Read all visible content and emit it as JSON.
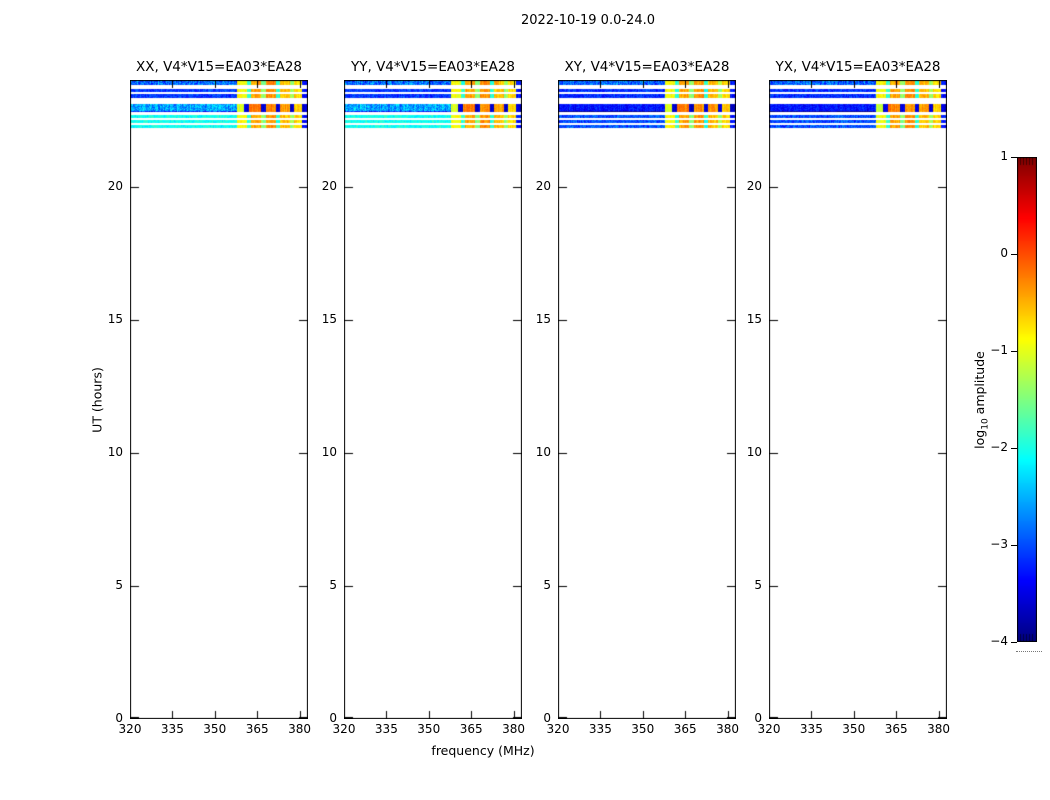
{
  "figure": {
    "suptitle": "2022-10-19 0.0-24.0"
  },
  "chart_data": {
    "type": "heatmap",
    "description": "Dynamic spectra (UT vs frequency) of visibility amplitude for baseline V4*V15=EA03*EA28 in four polarization products; data present only between UT 22.1 and 24.0, with broadband RFI above 358 MHz.",
    "panels": [
      {
        "title": "XX, V4*V15=EA03*EA28",
        "pol": "XX",
        "style": "parallel",
        "seed": 101
      },
      {
        "title": "YY, V4*V15=EA03*EA28",
        "pol": "YY",
        "style": "parallel",
        "seed": 202
      },
      {
        "title": "XY, V4*V15=EA03*EA28",
        "pol": "XY",
        "style": "cross",
        "seed": 303
      },
      {
        "title": "YX, V4*V15=EA03*EA28",
        "pol": "YX",
        "style": "cross",
        "seed": 404
      }
    ],
    "x_axis": {
      "label": "frequency (MHz)",
      "ticks": [
        320,
        335,
        350,
        365,
        380
      ],
      "range": [
        320,
        383
      ]
    },
    "y_axis": {
      "label": "UT (hours)",
      "ticks": [
        0,
        5,
        10,
        15,
        20
      ],
      "range": [
        0,
        24
      ]
    },
    "colorbar": {
      "label_log": "log",
      "label_sub": "10",
      "label_rest": "amplitude",
      "ticks": [
        {
          "value": 1,
          "label": "1"
        },
        {
          "value": 0,
          "label": "0"
        },
        {
          "value": -1,
          "label": "−1"
        },
        {
          "value": -2,
          "label": "−2"
        },
        {
          "value": -3,
          "label": "−3"
        },
        {
          "value": -4,
          "label": "−4"
        }
      ],
      "range": [
        -4,
        1
      ],
      "colormap": "jet"
    },
    "rfi_start_mhz": 358,
    "rows": [
      {
        "ut": [
          23.8,
          24.0
        ],
        "band": "top",
        "rfi": "normal"
      },
      {
        "ut": [
          23.55,
          23.66
        ],
        "band": "thin",
        "rfi": "normal"
      },
      {
        "ut": [
          23.32,
          23.47
        ],
        "band": "thin",
        "rfi": "normal"
      },
      {
        "ut": [
          22.78,
          23.08
        ],
        "band": "thick",
        "rfi": "bright"
      },
      {
        "ut": [
          22.57,
          22.68
        ],
        "band": "light",
        "rfi": "normal"
      },
      {
        "ut": [
          22.37,
          22.48
        ],
        "band": "light",
        "rfi": "normal"
      },
      {
        "ut": [
          22.18,
          22.31
        ],
        "band": "light",
        "rfi": "normal"
      }
    ],
    "band_levels": {
      "parallel": {
        "top": [
          -2.85,
          0.55
        ],
        "thin": [
          -3.1,
          0.3
        ],
        "thick": [
          -2.55,
          0.5
        ],
        "light": [
          -2.05,
          0.25
        ]
      },
      "cross": {
        "top": [
          -2.9,
          0.5
        ],
        "thin": [
          -3.15,
          0.3
        ],
        "thick": [
          -3.3,
          0.3
        ],
        "light": [
          -3.0,
          0.35
        ]
      }
    },
    "rfi_blocks_normal": [
      [
        358.0,
        361.5,
        -0.9
      ],
      [
        361.5,
        363.0,
        -1.9
      ],
      [
        363.0,
        366.5,
        -0.45
      ],
      [
        366.5,
        368.0,
        -1.45
      ],
      [
        368.0,
        371.5,
        -0.35
      ],
      [
        371.5,
        373.0,
        -1.95
      ],
      [
        373.0,
        376.5,
        -0.55
      ],
      [
        376.5,
        378.0,
        -1.35
      ],
      [
        378.0,
        381.0,
        -0.7
      ],
      [
        381.0,
        383.0,
        -3.3
      ]
    ],
    "rfi_blocks_bright": [
      [
        358.0,
        360.5,
        -1.1
      ],
      [
        360.5,
        362.0,
        -3.6
      ],
      [
        362.0,
        366.5,
        -0.25
      ],
      [
        366.5,
        368.0,
        -3.6
      ],
      [
        368.0,
        371.5,
        -0.3
      ],
      [
        371.5,
        373.0,
        -3.6
      ],
      [
        373.0,
        376.5,
        -0.4
      ],
      [
        376.5,
        378.0,
        -3.6
      ],
      [
        378.0,
        381.0,
        -0.65
      ],
      [
        381.0,
        383.0,
        -3.6
      ]
    ]
  }
}
